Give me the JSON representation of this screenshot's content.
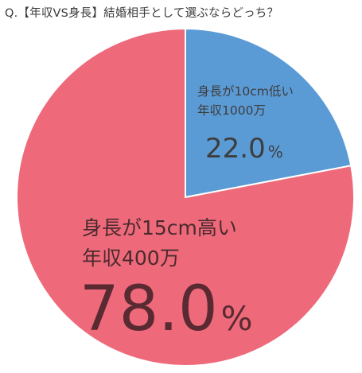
{
  "chart_data": {
    "type": "pie",
    "title": "Q.【年収VS身長】結婚相手として選ぶならどっち？",
    "slices": [
      {
        "line1": "身長が10cm低い",
        "line2": "年収1000万",
        "value": 22.0,
        "pct_label": "22.0",
        "pct_sign": "%",
        "color": "#5b9bd5"
      },
      {
        "line1": "身長が15cm高い",
        "line2": "年収400万",
        "value": 78.0,
        "pct_label": "78.0",
        "pct_sign": "%",
        "color": "#ee6a7a"
      }
    ],
    "legend": "none"
  }
}
